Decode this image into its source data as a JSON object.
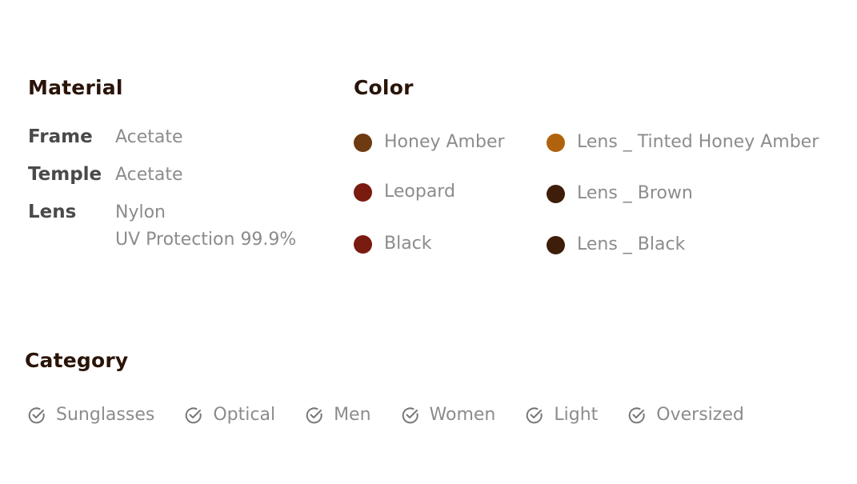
{
  "material": {
    "title": "Material",
    "rows": [
      {
        "key": "Frame",
        "value_lines": [
          "Acetate"
        ]
      },
      {
        "key": "Temple",
        "value_lines": [
          "Acetate"
        ]
      },
      {
        "key": "Lens",
        "value_lines": [
          "Nylon",
          "UV Protection 99.9%"
        ]
      }
    ]
  },
  "color": {
    "title": "Color",
    "frame_colors": [
      {
        "label": "Honey Amber",
        "swatch": "#6e3a12"
      },
      {
        "label": "Leopard",
        "swatch": "#7a1b10"
      },
      {
        "label": "Black",
        "swatch": "#7a1b10"
      }
    ],
    "lens_colors": [
      {
        "label": "Lens _ Tinted Honey Amber",
        "swatch": "#b0620e"
      },
      {
        "label": "Lens _ Brown",
        "swatch": "#3e1e0a"
      },
      {
        "label": "Lens _ Black",
        "swatch": "#3e1e0a"
      }
    ]
  },
  "category": {
    "title": "Category",
    "items": [
      {
        "label": "Sunglasses",
        "icon": "check-circle-icon"
      },
      {
        "label": "Optical",
        "icon": "check-circle-icon"
      },
      {
        "label": "Men",
        "icon": "check-circle-icon"
      },
      {
        "label": "Women",
        "icon": "check-circle-icon"
      },
      {
        "label": "Light",
        "icon": "check-circle-icon"
      },
      {
        "label": "Oversized",
        "icon": "check-circle-icon"
      }
    ]
  },
  "colors": {
    "heading": "#2a1408",
    "key_text": "#4a4a4a",
    "value_text": "#8c8c8c",
    "icon": "#777777"
  }
}
